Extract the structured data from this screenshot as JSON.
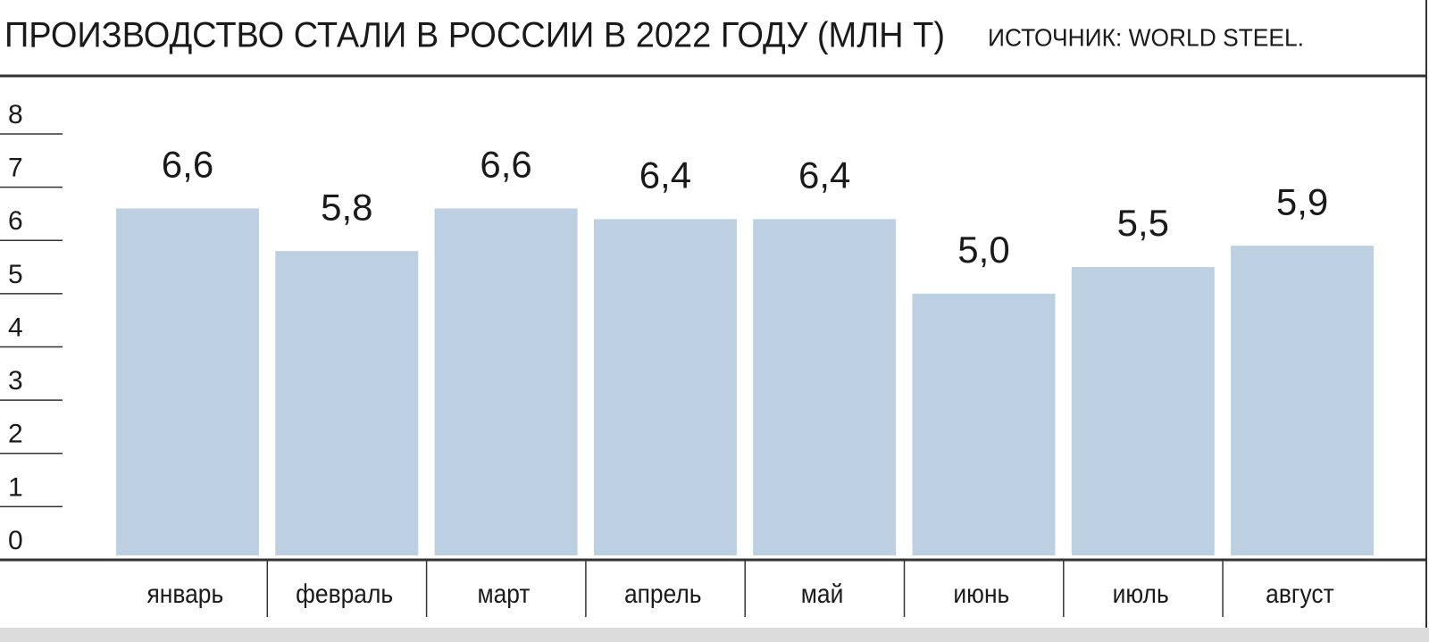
{
  "chart_data": {
    "type": "bar",
    "title": "ПРОИЗВОДСТВО СТАЛИ В РОССИИ В 2022 ГОДУ (МЛН Т)",
    "source": "ИСТОЧНИК: WORLD STEEL.",
    "categories": [
      "январь",
      "февраль",
      "март",
      "апрель",
      "май",
      "июнь",
      "июль",
      "август"
    ],
    "values": [
      6.6,
      5.8,
      6.6,
      6.4,
      6.4,
      5.0,
      5.5,
      5.9
    ],
    "value_labels": [
      "6,6",
      "5,8",
      "6,6",
      "6,4",
      "6,4",
      "5,0",
      "5,5",
      "5,9"
    ],
    "color": "#bcd0e2",
    "ylim": [
      0,
      8
    ],
    "yticks": [
      0,
      1,
      2,
      3,
      4,
      5,
      6,
      7,
      8
    ]
  }
}
